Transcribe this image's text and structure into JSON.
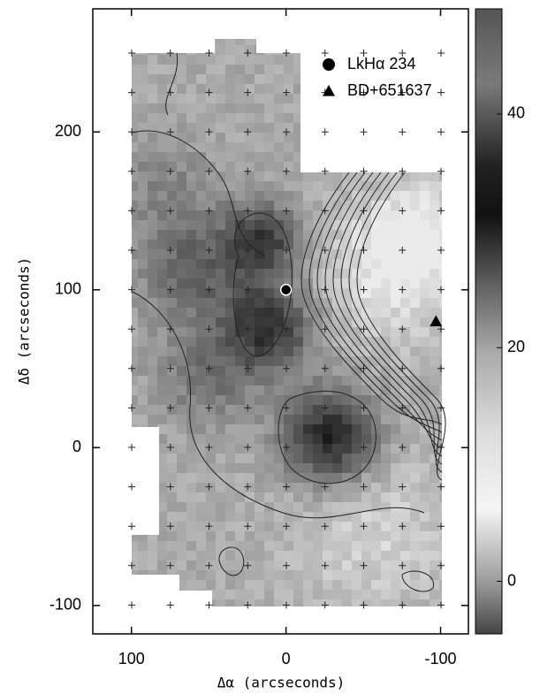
{
  "chart_data": {
    "type": "scatter",
    "xlabel": "Δα (arcseconds)",
    "ylabel": "Δδ (arcseconds)",
    "xlim": [
      125,
      -118
    ],
    "ylim": [
      -118,
      278
    ],
    "xticks": [
      100,
      0,
      -100
    ],
    "yticks": [
      -100,
      0,
      100,
      200
    ],
    "series": [
      {
        "name": "LkHα 234",
        "marker": "circle",
        "color": "#000000",
        "x": [
          0
        ],
        "y": [
          100
        ]
      },
      {
        "name": "BD+651637",
        "marker": "triangle",
        "color": "#000000",
        "x": [
          -97
        ],
        "y": [
          80
        ]
      }
    ],
    "colorbar": {
      "lim": [
        -4.5,
        49
      ],
      "ticks": [
        0,
        20,
        40
      ]
    },
    "legend": "upper right"
  }
}
